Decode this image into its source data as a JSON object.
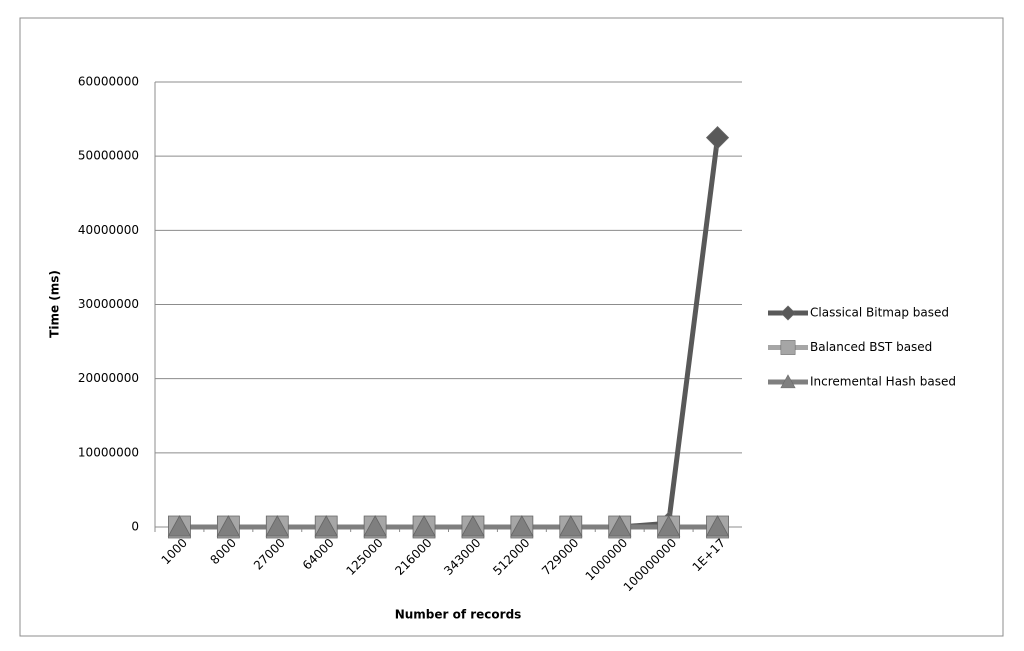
{
  "chart_data": {
    "type": "line",
    "y_label": "Time (ms)",
    "x_label": "Number of records",
    "categories": [
      "1000",
      "8000",
      "27000",
      "64000",
      "125000",
      "216000",
      "343000",
      "512000",
      "729000",
      "1000000",
      "100000000",
      "1E+17"
    ],
    "series": [
      {
        "name": "Classical Bitmap based",
        "color": "#595959",
        "marker": "diamond",
        "values": [
          0,
          0,
          0,
          0,
          0,
          0,
          0,
          0,
          0,
          0,
          500000,
          52500000
        ]
      },
      {
        "name": "Balanced BST based",
        "color": "#a6a6a6",
        "marker": "square",
        "values": [
          0,
          0,
          0,
          0,
          0,
          0,
          0,
          0,
          0,
          0,
          0,
          0
        ]
      },
      {
        "name": "Incremental Hash based",
        "color": "#7f7f7f",
        "marker": "triangle",
        "values": [
          0,
          0,
          0,
          0,
          0,
          0,
          0,
          0,
          0,
          0,
          0,
          0
        ]
      }
    ],
    "ylim": [
      0,
      60000000
    ],
    "yticks": [
      0,
      10000000,
      20000000,
      30000000,
      40000000,
      50000000,
      60000000
    ],
    "grid": true,
    "legend": "right"
  }
}
